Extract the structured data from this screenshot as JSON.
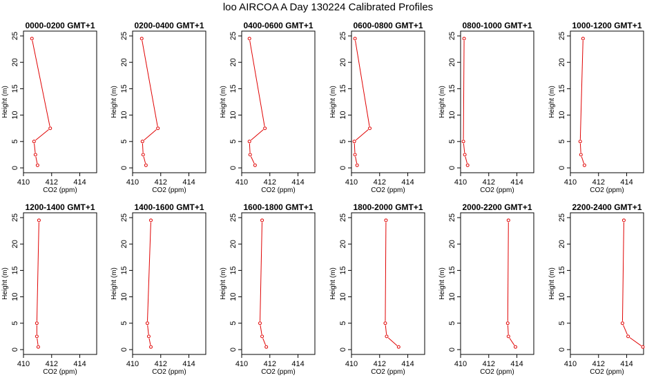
{
  "title": "loo AIRCOA A  Day 130224  Calibrated Profiles",
  "chart_data": {
    "type": "line",
    "xlabel": "CO2 (ppm)",
    "ylabel": "Height (m)",
    "xlim": [
      410,
      415.2
    ],
    "ylim": [
      0,
      25
    ],
    "xticks": [
      410,
      412,
      414
    ],
    "yticks": [
      0,
      5,
      10,
      15,
      20,
      25
    ],
    "heights": [
      0.5,
      2.5,
      5,
      7.5,
      24.5
    ],
    "panels": [
      {
        "name": "0000-0200 GMT+1",
        "x": [
          411.0,
          410.85,
          410.75,
          411.9,
          410.6
        ]
      },
      {
        "name": "0200-0400 GMT+1",
        "x": [
          410.95,
          410.75,
          410.7,
          411.8,
          410.65
        ]
      },
      {
        "name": "0400-0600 GMT+1",
        "x": [
          410.95,
          410.6,
          410.55,
          411.65,
          410.55
        ]
      },
      {
        "name": "0600-0800 GMT+1",
        "x": [
          410.4,
          410.25,
          410.2,
          411.3,
          410.25
        ]
      },
      {
        "name": "0800-1000 GMT+1",
        "x": [
          410.5,
          410.3,
          410.2,
          null,
          410.25
        ]
      },
      {
        "name": "1000-1200 GMT+1",
        "x": [
          411.0,
          410.75,
          410.7,
          null,
          410.9
        ]
      },
      {
        "name": "1200-1400 GMT+1",
        "x": [
          411.05,
          410.95,
          410.95,
          null,
          411.1
        ]
      },
      {
        "name": "1400-1600 GMT+1",
        "x": [
          411.3,
          411.15,
          411.05,
          null,
          411.3
        ]
      },
      {
        "name": "1600-1800 GMT+1",
        "x": [
          411.75,
          411.45,
          411.3,
          null,
          411.45
        ]
      },
      {
        "name": "1800-2000 GMT+1",
        "x": [
          413.35,
          412.5,
          412.4,
          null,
          412.45
        ]
      },
      {
        "name": "2000-2200 GMT+1",
        "x": [
          413.9,
          413.4,
          413.35,
          null,
          413.4
        ]
      },
      {
        "name": "2200-2400 GMT+1",
        "x": [
          415.15,
          414.1,
          413.7,
          null,
          413.8
        ]
      }
    ]
  }
}
